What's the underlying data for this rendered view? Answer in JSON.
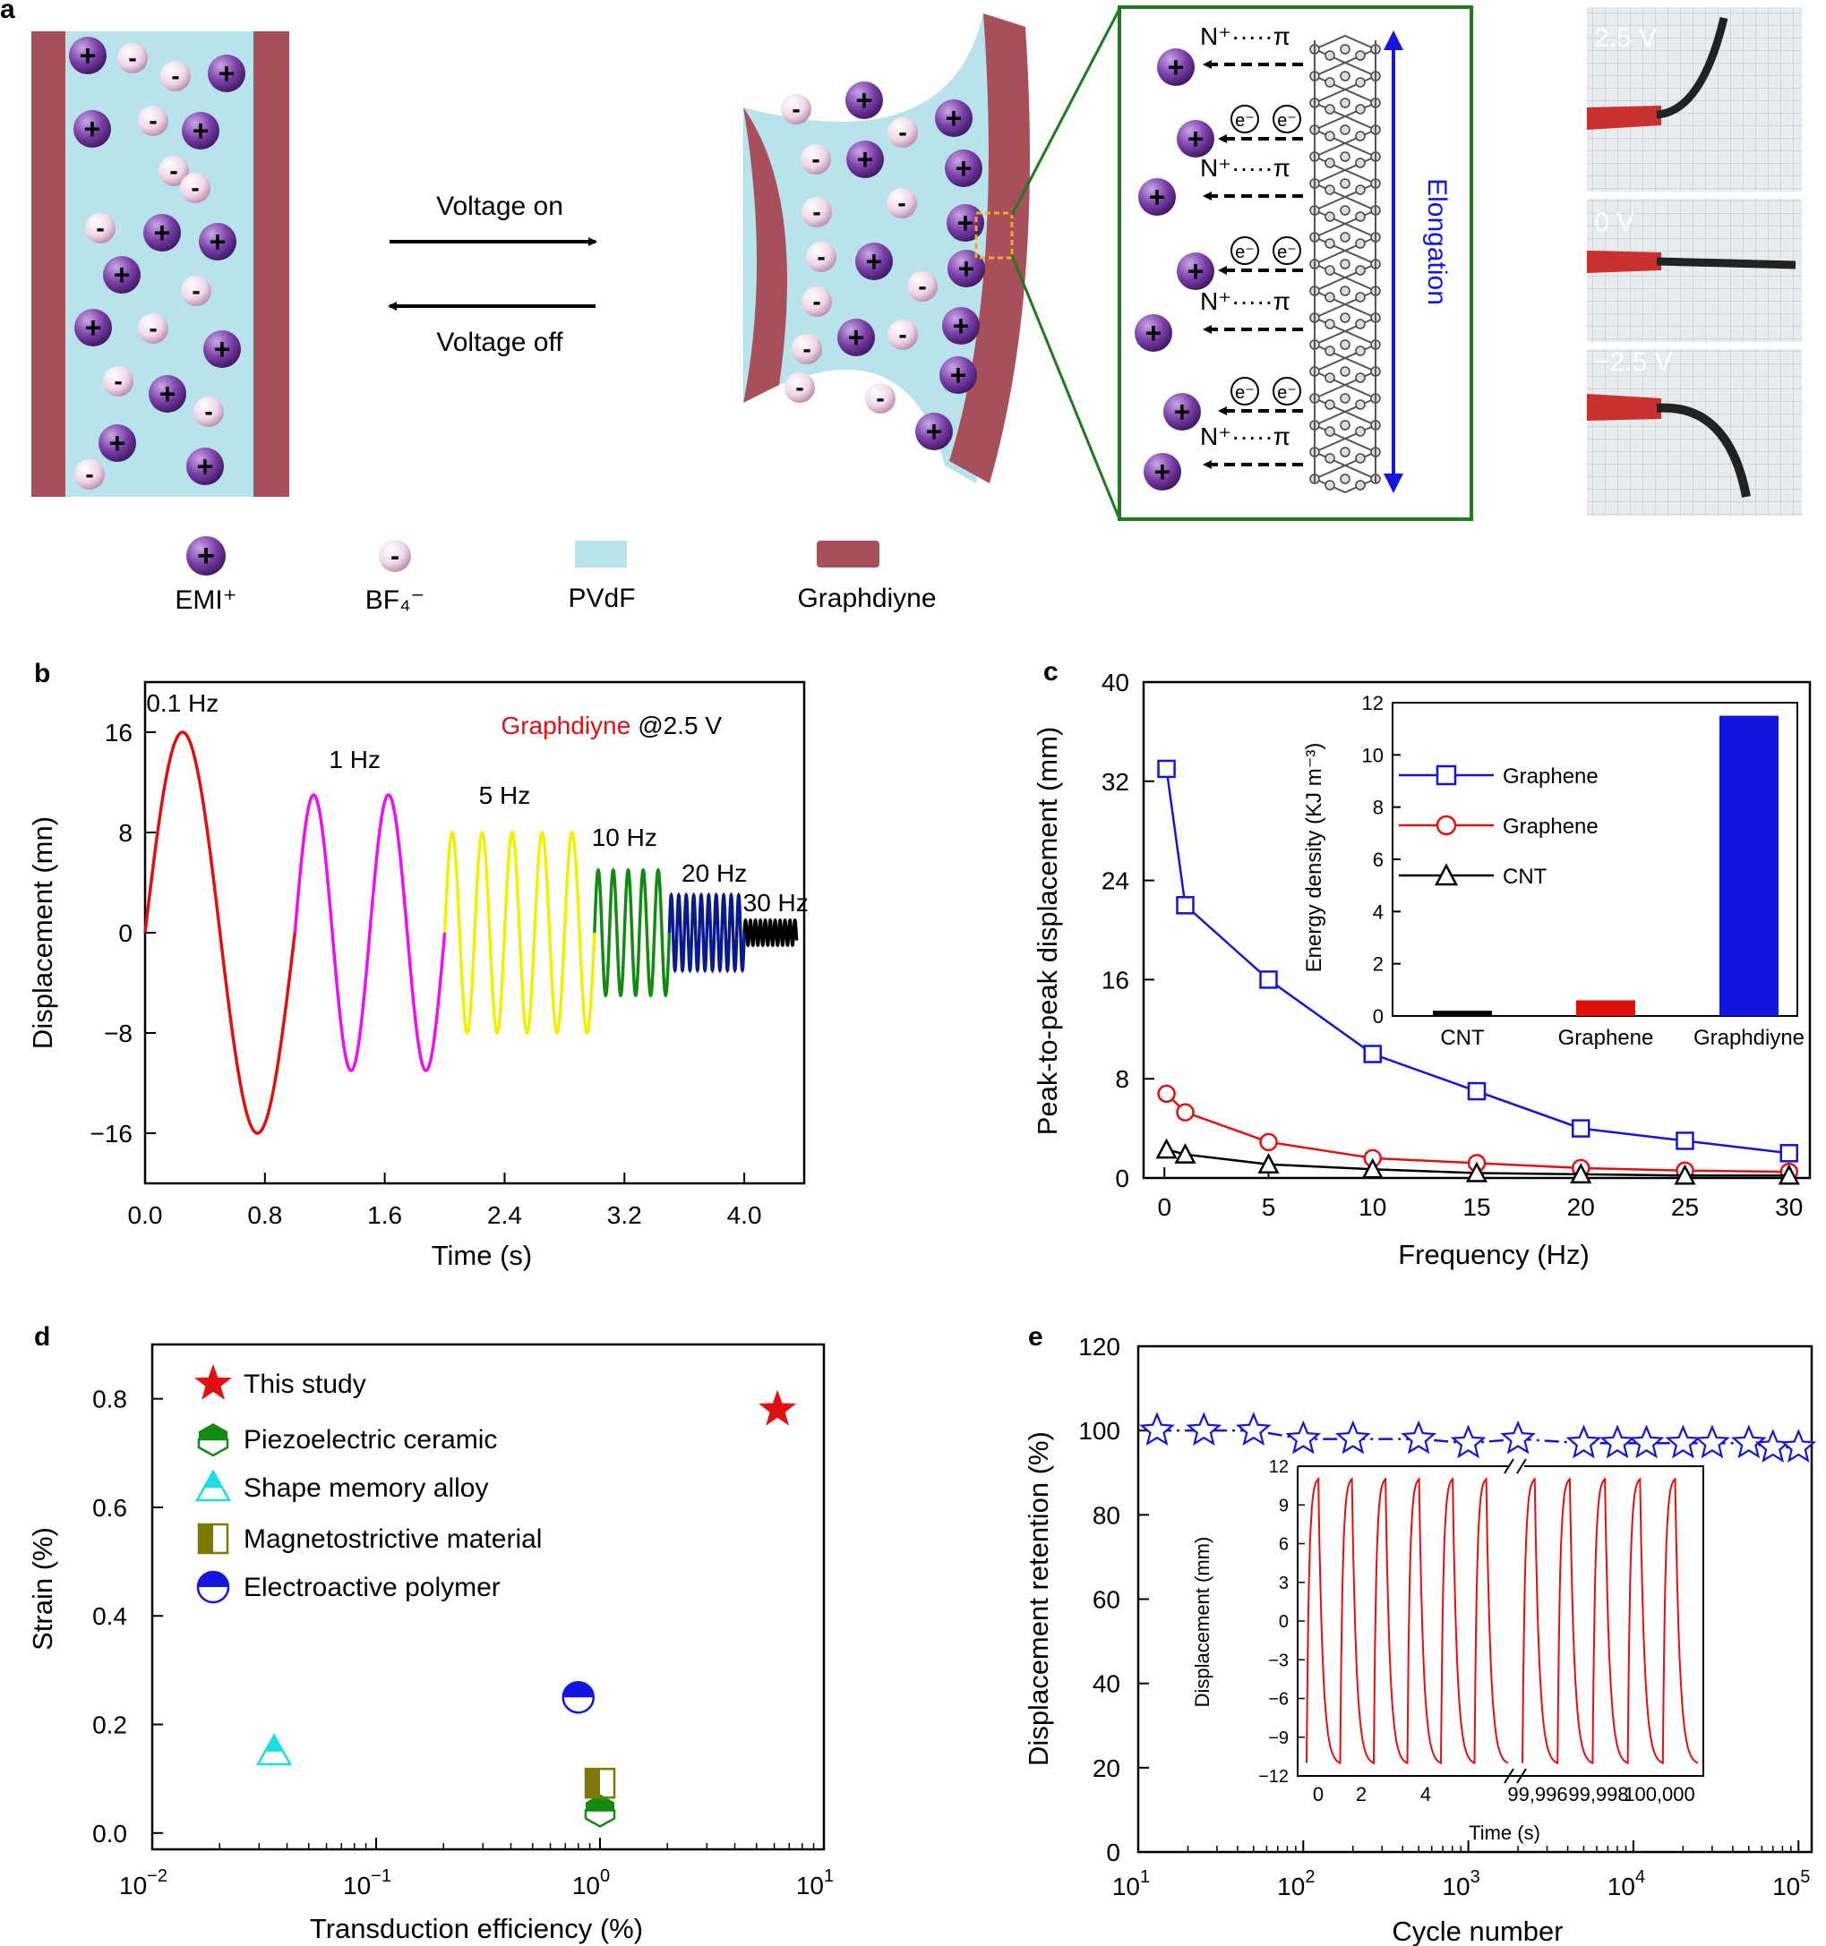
{
  "panel_labels": {
    "a": "a",
    "b": "b",
    "c": "c",
    "d": "d",
    "e": "e"
  },
  "colors": {
    "electrode": "#a84f5c",
    "electrolyte": "#b9e3ec",
    "cation": "#7b3fa8",
    "anion": "#efd6e8",
    "zoom_frame": "#1f7a1f",
    "elongation": "#1515e0",
    "highlight": "#f5a623"
  },
  "panel_a": {
    "voltage_on": "Voltage on",
    "voltage_off": "Voltage off",
    "cation_sign": "+",
    "anion_sign": "-",
    "npi_label": "N⁺·····π",
    "electron_label": "e⁻",
    "elongation": "Elongation",
    "legend": {
      "cation": "EMI⁺",
      "anion": "BF₄⁻",
      "pvdf": "PVdF",
      "graphdiyne": "Graphdiyne"
    },
    "photo_labels": [
      "2.5 V",
      "0 V",
      "−2.5 V"
    ]
  },
  "chart_data": [
    {
      "panel": "b",
      "type": "line",
      "title": "",
      "xlabel": "Time (s)",
      "ylabel": "Displacement (mn)",
      "xlim": [
        0,
        4.4
      ],
      "ylim": [
        -20,
        20
      ],
      "xticks": [
        "0.0",
        "0.8",
        "1.6",
        "2.4",
        "3.2",
        "4.0"
      ],
      "yticks": [
        "16",
        "8",
        "0",
        "−8",
        "−16"
      ],
      "annotation": {
        "material": "Graphdiyne",
        "voltage": "@2.5 V"
      },
      "segments": [
        {
          "label": "0.1 Hz",
          "color": "#e01010",
          "t0": 0.0,
          "t1": 1.0,
          "amplitude": 16,
          "period": 1.0
        },
        {
          "label": "1 Hz",
          "color": "#ee10ee",
          "t0": 1.0,
          "t1": 2.0,
          "amplitude": 11,
          "period": 0.5
        },
        {
          "label": "5 Hz",
          "color": "#f2f200",
          "t0": 2.0,
          "t1": 3.0,
          "amplitude": 8,
          "period": 0.2
        },
        {
          "label": "10 Hz",
          "color": "#138a13",
          "t0": 3.0,
          "t1": 3.5,
          "amplitude": 5,
          "period": 0.1
        },
        {
          "label": "20 Hz",
          "color": "#0a1a8a",
          "t0": 3.5,
          "t1": 4.0,
          "amplitude": 3,
          "period": 0.05
        },
        {
          "label": "30 Hz",
          "color": "#000000",
          "t0": 4.0,
          "t1": 4.35,
          "amplitude": 1,
          "period": 0.033
        }
      ]
    },
    {
      "panel": "c",
      "type": "line",
      "title": "",
      "xlabel": "Frequency (Hz)",
      "ylabel": "Peak-to-peak displacement (mm)",
      "xlim": [
        -1,
        31
      ],
      "ylim": [
        0,
        40
      ],
      "xticks": [
        "0",
        "5",
        "10",
        "15",
        "20",
        "25",
        "30"
      ],
      "yticks": [
        "0",
        "8",
        "16",
        "24",
        "32",
        "40"
      ],
      "x": [
        0.1,
        1,
        5,
        10,
        15,
        20,
        25,
        30
      ],
      "series": [
        {
          "name": "Graphene",
          "color": "#1515d0",
          "marker": "square",
          "values": [
            33,
            22,
            16,
            10,
            7,
            4,
            3,
            2
          ]
        },
        {
          "name": "Graphene",
          "color": "#e01010",
          "marker": "circle",
          "values": [
            6.8,
            5.3,
            2.9,
            1.6,
            1.2,
            0.8,
            0.6,
            0.5
          ]
        },
        {
          "name": "CNT",
          "color": "#000000",
          "marker": "triangle",
          "values": [
            2.3,
            1.9,
            1.1,
            0.7,
            0.4,
            0.3,
            0.2,
            0.2
          ]
        }
      ],
      "inset": {
        "type": "bar",
        "ylabel": "Energy density (KJ m⁻³)",
        "ylim": [
          0,
          12
        ],
        "yticks": [
          "0",
          "2",
          "4",
          "6",
          "8",
          "10",
          "12"
        ],
        "categories": [
          "CNT",
          "Graphene",
          "Graphdiyne"
        ],
        "values": [
          0.2,
          0.6,
          11.5
        ],
        "colors": [
          "#000000",
          "#e01010",
          "#1515e0"
        ]
      }
    },
    {
      "panel": "d",
      "type": "scatter",
      "title": "",
      "xlabel": "Transduction efficiency (%)",
      "ylabel": "Strain (%)",
      "xscale": "log",
      "xlim": [
        0.01,
        10
      ],
      "ylim": [
        -0.03,
        0.9
      ],
      "yticks": [
        "0.0",
        "0.2",
        "0.4",
        "0.6",
        "0.8"
      ],
      "xtick_bases": [
        "10",
        "10",
        "10",
        "10"
      ],
      "xtick_exps": [
        "−2",
        "−1",
        "0",
        "1"
      ],
      "points": [
        {
          "name": "This study",
          "marker": "star",
          "color": "#e01010",
          "x": 6.2,
          "y": 0.78
        },
        {
          "name": "Piezoelectric ceramic",
          "marker": "hexagon",
          "color": "#138a13",
          "x": 1.0,
          "y": 0.05
        },
        {
          "name": "Shape memory alloy",
          "marker": "triangle",
          "color": "#18e0e0",
          "x": 0.035,
          "y": 0.15
        },
        {
          "name": "Magnetostrictive material",
          "marker": "square",
          "color": "#7a7a00",
          "x": 1.0,
          "y": 0.1
        },
        {
          "name": "Electroactive polymer",
          "marker": "circle",
          "color": "#1515e0",
          "x": 0.8,
          "y": 0.25
        }
      ]
    },
    {
      "panel": "e",
      "type": "scatter",
      "title": "",
      "xlabel": "Cycle number",
      "ylabel": "Displacement retention (%)",
      "xscale": "log",
      "xlim": [
        10,
        100000
      ],
      "ylim": [
        0,
        120
      ],
      "yticks": [
        "0",
        "20",
        "40",
        "60",
        "80",
        "100",
        "120"
      ],
      "xtick_bases": [
        "10",
        "10",
        "10",
        "10",
        "10"
      ],
      "xtick_exps": [
        "1",
        "2",
        "3",
        "4",
        "5"
      ],
      "series": [
        {
          "name": "Graphdiyne",
          "color": "#1515d0",
          "marker": "star",
          "x": [
            13,
            25,
            50,
            100,
            200,
            500,
            1000,
            2000,
            5000,
            8000,
            12000,
            20000,
            30000,
            50000,
            70000,
            100000
          ],
          "values": [
            100,
            100,
            100,
            98,
            98,
            98,
            97,
            98,
            97,
            97,
            97,
            97,
            97,
            97,
            96,
            96
          ]
        }
      ],
      "inset": {
        "type": "line",
        "xlabel": "Time (s)",
        "ylabel": "Displacement (mm)",
        "ylim": [
          -12,
          12
        ],
        "yticks": [
          "12",
          "9",
          "6",
          "3",
          "0",
          "−3",
          "−6",
          "−9",
          "−12"
        ],
        "xticks_left": [
          "0",
          "2",
          "4"
        ],
        "xticks_right": [
          "99,996",
          "99,998",
          "100,000"
        ],
        "color": "#e01010",
        "amplitude": 11,
        "cycles_left": 6,
        "cycles_right": 5
      }
    }
  ]
}
